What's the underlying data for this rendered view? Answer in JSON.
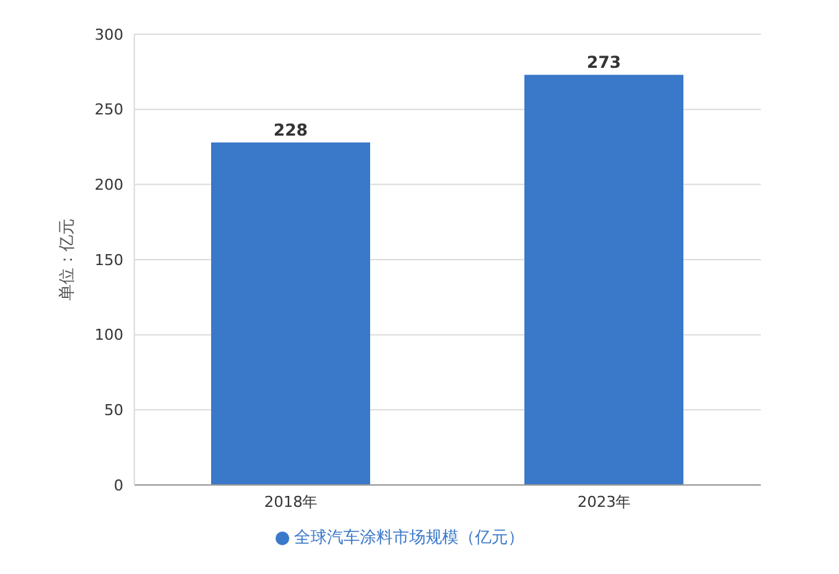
{
  "chart_data": {
    "type": "bar",
    "ylabel": "单位：亿元",
    "categories": [
      "2018年",
      "2023年"
    ],
    "series": [
      {
        "name": "全球汽车涂料市场规模（亿元）",
        "color": "#3a78c9",
        "values": [
          228,
          273
        ]
      }
    ],
    "ylim": [
      0,
      300
    ],
    "yticks": [
      0,
      50,
      100,
      150,
      200,
      250,
      300
    ],
    "grid": "y",
    "legend": "bottom",
    "data_labels": true
  }
}
